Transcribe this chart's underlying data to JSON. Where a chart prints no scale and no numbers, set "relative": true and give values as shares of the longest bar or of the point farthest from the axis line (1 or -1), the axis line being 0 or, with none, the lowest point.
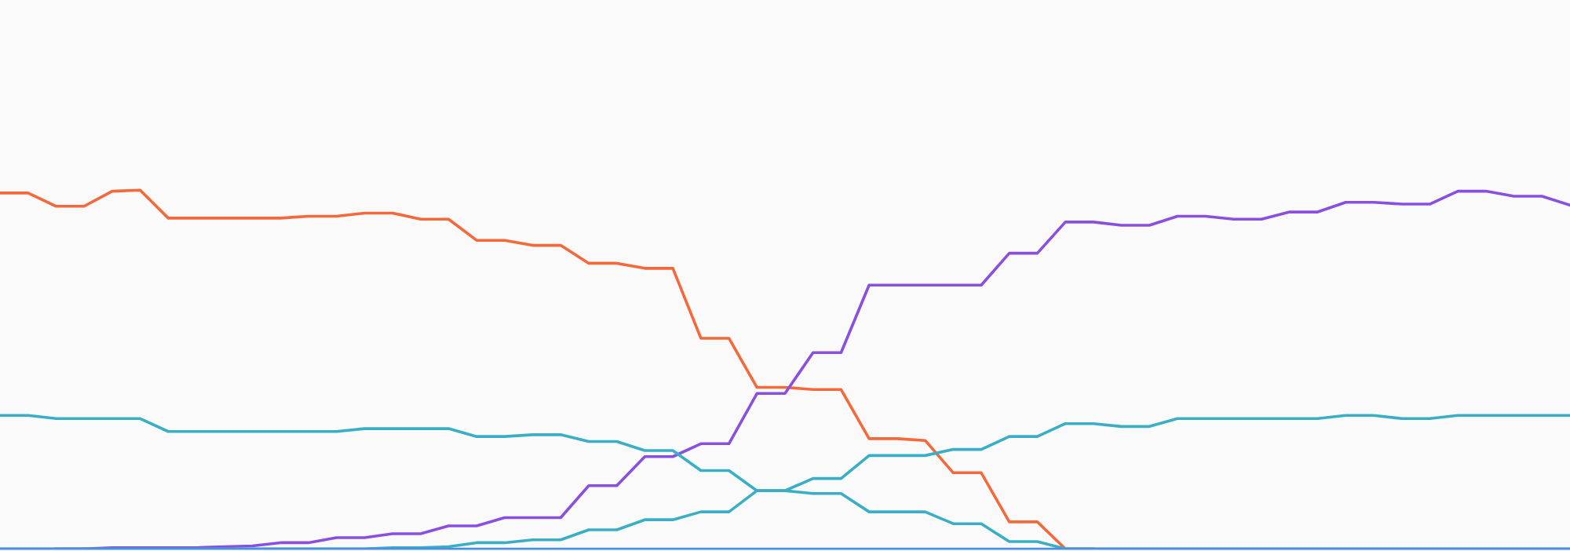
{
  "chart_data": {
    "type": "line",
    "relative": true,
    "marker": "none",
    "line_style": "solid",
    "categories": [
      null,
      null,
      null,
      null,
      null,
      null,
      null,
      null,
      null,
      null,
      null,
      null,
      null,
      null,
      null,
      null,
      null,
      null,
      null,
      null,
      null,
      null,
      null,
      null,
      null,
      null,
      null,
      null,
      null,
      null,
      null,
      null,
      null,
      null,
      null,
      null,
      null,
      null,
      null,
      null,
      null,
      null,
      null,
      null,
      null,
      null,
      null,
      null,
      null,
      null,
      null,
      null,
      null,
      null,
      null,
      null,
      null
    ],
    "series": [
      {
        "color": "#f4683a",
        "values": [
          0.992,
          0.992,
          0.955,
          0.955,
          0.997,
          1.0,
          0.922,
          0.922,
          0.922,
          0.922,
          0.922,
          0.927,
          0.927,
          0.936,
          0.936,
          0.919,
          0.919,
          0.86,
          0.86,
          0.846,
          0.846,
          0.796,
          0.796,
          0.782,
          0.782,
          0.587,
          0.587,
          0.45,
          0.45,
          0.444,
          0.444,
          0.307,
          0.307,
          0.302,
          0.212,
          0.212,
          0.075,
          0.075,
          0,
          0,
          null,
          null,
          null,
          null,
          null,
          null,
          null,
          null,
          null,
          null,
          null,
          null,
          null,
          null,
          null,
          null,
          null
        ]
      },
      {
        "color": "#8b4fe0",
        "values": [
          null,
          null,
          0,
          0,
          0.003,
          0.003,
          0.003,
          0.003,
          0.006,
          0.008,
          0.017,
          0.017,
          0.031,
          0.031,
          0.042,
          0.042,
          0.064,
          0.064,
          0.087,
          0.087,
          0.087,
          0.176,
          0.176,
          0.257,
          0.257,
          0.293,
          0.293,
          0.433,
          0.433,
          0.547,
          0.547,
          0.735,
          0.735,
          0.735,
          0.735,
          0.735,
          0.824,
          0.824,
          0.911,
          0.911,
          0.902,
          0.902,
          0.927,
          0.927,
          0.919,
          0.919,
          0.939,
          0.939,
          0.966,
          0.966,
          0.961,
          0.961,
          0.997,
          0.997,
          0.983,
          0.983,
          0.958
        ]
      },
      {
        "color": "#3aaec4",
        "values": [
          0.372,
          0.372,
          0.363,
          0.363,
          0.363,
          0.363,
          0.327,
          0.327,
          0.327,
          0.327,
          0.327,
          0.327,
          0.327,
          0.335,
          0.335,
          0.335,
          0.335,
          0.313,
          0.313,
          0.318,
          0.318,
          0.299,
          0.299,
          0.274,
          0.274,
          0.218,
          0.218,
          0.162,
          0.162,
          0.154,
          0.154,
          0.103,
          0.103,
          0.103,
          0.07,
          0.07,
          0.02,
          0.02,
          0,
          0,
          0,
          0,
          0,
          0,
          0,
          0,
          0,
          0,
          0,
          0,
          0,
          0,
          0,
          0,
          0,
          0,
          0
        ]
      },
      {
        "color": "#3aaec4",
        "values": [
          0,
          0,
          0,
          0,
          0,
          0,
          0,
          0,
          0,
          0,
          0,
          0,
          0,
          0,
          0.003,
          0.003,
          0.006,
          0.017,
          0.017,
          0.025,
          0.025,
          0.053,
          0.053,
          0.081,
          0.081,
          0.103,
          0.103,
          0.162,
          0.162,
          0.196,
          0.196,
          0.26,
          0.26,
          0.26,
          0.277,
          0.277,
          0.313,
          0.313,
          0.349,
          0.349,
          0.341,
          0.341,
          0.363,
          0.363,
          0.363,
          0.363,
          0.363,
          0.363,
          0.372,
          0.372,
          0.363,
          0.363,
          0.372,
          0.372,
          0.372,
          0.372,
          0.372
        ]
      }
    ]
  }
}
